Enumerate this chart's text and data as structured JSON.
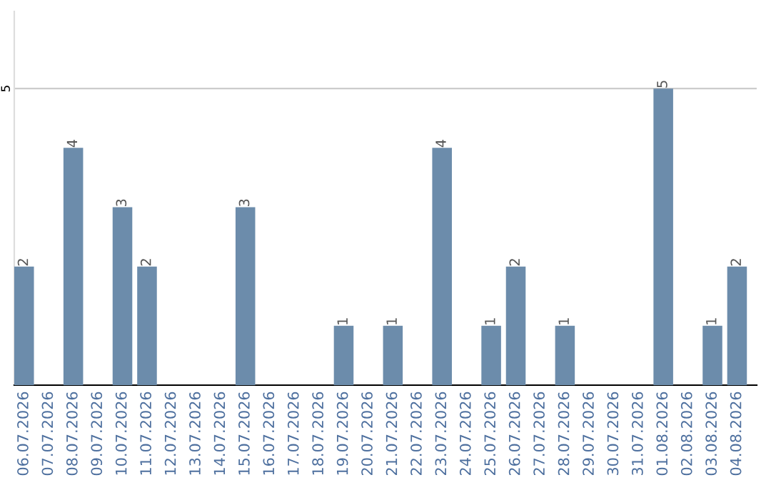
{
  "chart_data": {
    "type": "bar",
    "categories": [
      "06.07.2026",
      "07.07.2026",
      "08.07.2026",
      "09.07.2026",
      "10.07.2026",
      "11.07.2026",
      "12.07.2026",
      "13.07.2026",
      "14.07.2026",
      "15.07.2026",
      "16.07.2026",
      "17.07.2026",
      "18.07.2026",
      "19.07.2026",
      "20.07.2026",
      "21.07.2026",
      "22.07.2026",
      "23.07.2026",
      "24.07.2026",
      "25.07.2026",
      "26.07.2026",
      "27.07.2026",
      "28.07.2026",
      "29.07.2026",
      "30.07.2026",
      "31.07.2026",
      "01.08.2026",
      "02.08.2026",
      "03.08.2026",
      "04.08.2026"
    ],
    "values": [
      2,
      0,
      4,
      0,
      3,
      2,
      0,
      0,
      0,
      3,
      0,
      0,
      0,
      1,
      0,
      1,
      0,
      4,
      0,
      1,
      2,
      0,
      1,
      0,
      0,
      0,
      5,
      0,
      1,
      2
    ],
    "value_labels": [
      "2",
      null,
      "4",
      null,
      "3",
      "2",
      null,
      null,
      null,
      "3",
      null,
      null,
      null,
      "1",
      null,
      "1",
      null,
      "4",
      null,
      "1",
      "2",
      null,
      "1",
      null,
      null,
      null,
      "5",
      null,
      "1",
      "2"
    ],
    "color": "#6c8cab",
    "ylim": [
      0,
      6.3
    ],
    "yticks": [
      5
    ],
    "grid": "y",
    "legend": false
  }
}
